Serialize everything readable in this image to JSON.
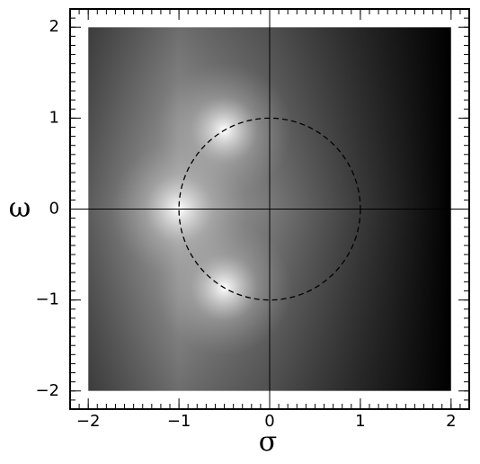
{
  "chart_data": {
    "type": "pole-map",
    "xlabel": "σ",
    "ylabel": "ω",
    "xlim": [
      -2.2,
      2.2
    ],
    "ylim": [
      -2.2,
      2.2
    ],
    "xticks": [
      {
        "value": -2,
        "label": "−2"
      },
      {
        "value": -1,
        "label": "−1"
      },
      0,
      1,
      2
    ],
    "yticks": [
      {
        "value": -2,
        "label": "−2"
      },
      {
        "value": -1,
        "label": "−1"
      },
      0,
      1,
      2
    ],
    "minor_step": 0.1,
    "image_extent": [
      -2,
      2,
      -2,
      2
    ],
    "circle_radius": 1,
    "poles": [
      {
        "sigma": -1,
        "omega": 0
      },
      {
        "sigma": -0.5,
        "omega": 0.866
      },
      {
        "sigma": -0.5,
        "omega": -0.866
      }
    ]
  }
}
